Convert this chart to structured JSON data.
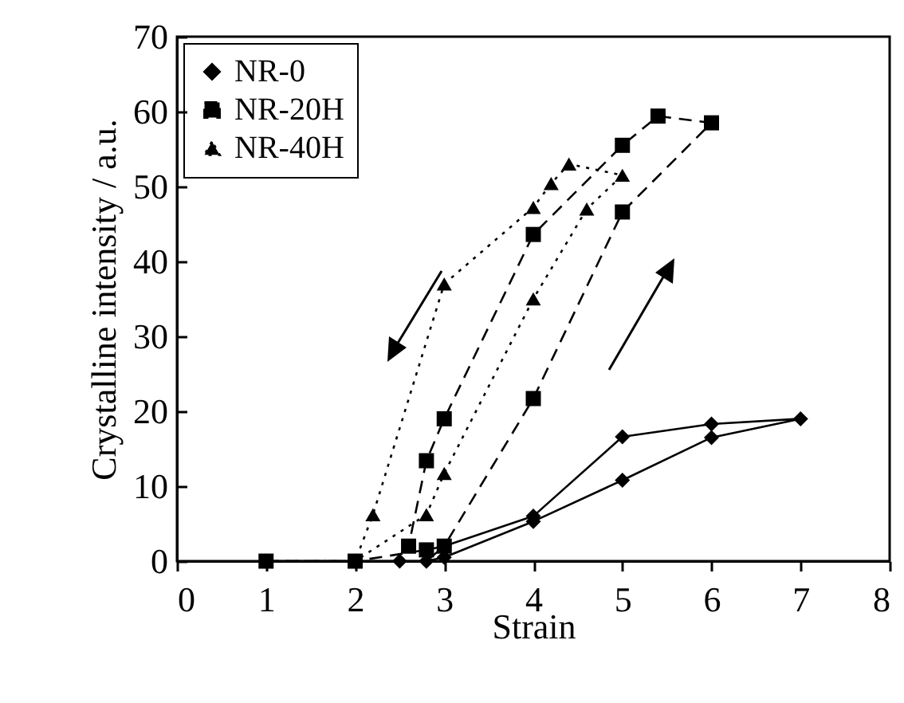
{
  "chart_data": {
    "type": "line",
    "xlabel": "Strain",
    "ylabel": "Crystalline intensity / a.u.",
    "xlim": [
      0,
      8
    ],
    "xticks": [
      0,
      1,
      2,
      3,
      4,
      5,
      6,
      7,
      8
    ],
    "ylim": [
      0,
      70
    ],
    "yticks": [
      0,
      10,
      20,
      30,
      40,
      50,
      60,
      70
    ],
    "grid": false,
    "legend": "top left",
    "series": [
      {
        "name": "NR-0",
        "color": "#000000",
        "marker": "diamond",
        "line_style": "solid",
        "x": [
          1,
          2,
          2.5,
          2.8,
          3,
          4,
          5,
          6,
          7,
          6,
          5,
          4,
          3,
          2.8
        ],
        "values": [
          0,
          0,
          0,
          0,
          0.5,
          5.3,
          10.8,
          16.5,
          19,
          18.3,
          16.6,
          6,
          2,
          0
        ]
      },
      {
        "name": "NR-20H",
        "color": "#000000",
        "marker": "square",
        "line_style": "dashed",
        "x": [
          1,
          2,
          2.8,
          3,
          4,
          5,
          6,
          5.4,
          5,
          4,
          3,
          2.8,
          2.6
        ],
        "values": [
          0,
          0,
          1.5,
          2,
          21.7,
          46.6,
          58.5,
          59.4,
          55.5,
          43.6,
          19,
          13.4,
          2
        ]
      },
      {
        "name": "NR-40H",
        "color": "#000000",
        "marker": "triangle",
        "line_style": "dotted",
        "x": [
          1,
          2,
          2.8,
          3,
          4,
          4.6,
          5,
          4.4,
          4.2,
          4,
          3,
          2.2,
          2
        ],
        "values": [
          0,
          0,
          6.2,
          11.7,
          35,
          47,
          51.5,
          53,
          50.4,
          47.2,
          37,
          6.2,
          0
        ]
      }
    ]
  }
}
